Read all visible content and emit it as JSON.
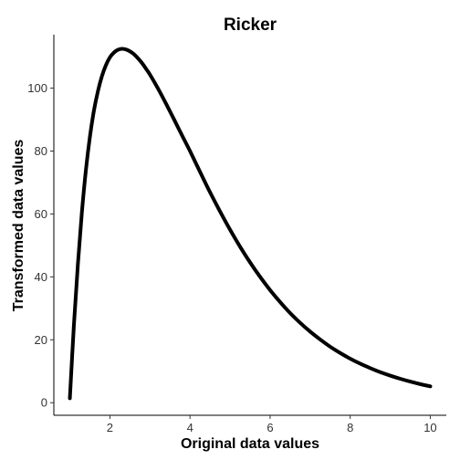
{
  "chart_data": {
    "type": "line",
    "title": "Ricker",
    "xlabel": "Original data values",
    "ylabel": "Transformed data values",
    "xlim": [
      0.6,
      10.4
    ],
    "ylim": [
      -4,
      117
    ],
    "x_ticks": [
      2,
      4,
      6,
      8,
      10
    ],
    "y_ticks": [
      0,
      20,
      40,
      60,
      80,
      100
    ],
    "grid": false,
    "legend": "none",
    "line_color": "#000000",
    "series": [
      {
        "x": [
          1.0,
          1.1,
          1.2,
          1.3,
          1.4,
          1.5,
          1.6,
          1.7,
          1.8,
          1.9,
          2.0,
          2.1,
          2.2,
          2.3,
          2.4,
          2.5,
          2.6,
          2.7,
          2.8,
          2.9,
          3.0,
          3.2,
          3.4,
          3.6,
          3.8,
          4.0,
          4.25,
          4.5,
          4.75,
          5.0,
          5.25,
          5.5,
          5.75,
          6.0,
          6.25,
          6.5,
          6.75,
          7.0,
          7.25,
          7.5,
          7.75,
          8.0,
          8.25,
          8.5,
          8.75,
          9.0,
          9.25,
          9.5,
          9.75,
          10.0
        ],
        "y": [
          1.4,
          24.5,
          44.0,
          60.5,
          73.9,
          84.5,
          92.8,
          99.0,
          103.8,
          107.3,
          109.8,
          111.3,
          112.2,
          112.5,
          112.3,
          111.7,
          110.8,
          109.5,
          108.0,
          106.2,
          104.3,
          99.9,
          95.1,
          90.1,
          85.0,
          80.0,
          73.4,
          66.9,
          60.8,
          55.0,
          49.6,
          44.6,
          40.0,
          35.8,
          32.0,
          28.5,
          25.4,
          22.6,
          20.1,
          17.8,
          15.8,
          14.0,
          12.4,
          11.0,
          9.7,
          8.6,
          7.6,
          6.7,
          5.9,
          5.2
        ]
      }
    ]
  }
}
